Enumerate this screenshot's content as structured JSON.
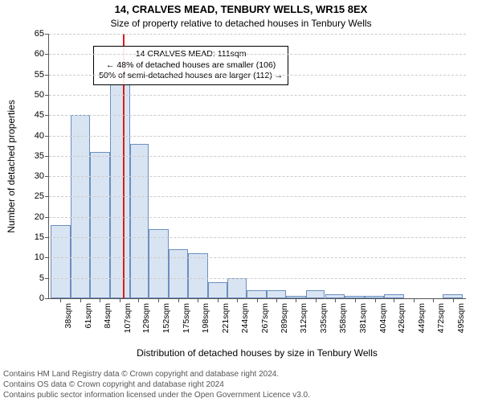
{
  "title_main": "14, CRALVES MEAD, TENBURY WELLS, WR15 8EX",
  "title_sub": "Size of property relative to detached houses in Tenbury Wells",
  "ylabel": "Number of detached properties",
  "xlabel": "Distribution of detached houses by size in Tenbury Wells",
  "footer_line1": "Contains HM Land Registry data © Crown copyright and database right 2024.",
  "footer_line2": "Contains OS data © Crown copyright and database right 2024",
  "footer_line3": "Contains public sector information licensed under the Open Government Licence v3.0.",
  "annotation": {
    "line1": "14 CRALVES MEAD: 111sqm",
    "line2": "← 48% of detached houses are smaller (106)",
    "line3": "50% of semi-detached houses are larger (112) →",
    "center_x_value": 190,
    "top_y_value": 62
  },
  "chart": {
    "type": "histogram",
    "bar_fill": "#d9e4f2",
    "bar_stroke": "#6a8fbf",
    "background_color": "#ffffff",
    "grid_color": "#cccccc",
    "axis_color": "#555555",
    "title_fontsize": 13,
    "subtitle_fontsize": 12,
    "label_fontsize": 12,
    "tick_fontsize": 11,
    "xmin": 25,
    "xmax": 510,
    "ymin": 0,
    "ymax": 65,
    "ytick_step": 5,
    "bin_width": 23,
    "ref_line": {
      "x": 111,
      "color": "#e11919",
      "width": 2
    },
    "xticks": [
      38,
      61,
      84,
      107,
      129,
      152,
      175,
      198,
      221,
      244,
      267,
      289,
      312,
      335,
      358,
      381,
      404,
      426,
      449,
      472,
      495
    ],
    "bars": [
      {
        "x0": 27,
        "x1": 50,
        "y": 18
      },
      {
        "x0": 50,
        "x1": 73,
        "y": 45
      },
      {
        "x0": 73,
        "x1": 96,
        "y": 36
      },
      {
        "x0": 96,
        "x1": 119,
        "y": 53
      },
      {
        "x0": 119,
        "x1": 141,
        "y": 38
      },
      {
        "x0": 141,
        "x1": 164,
        "y": 17
      },
      {
        "x0": 164,
        "x1": 187,
        "y": 12
      },
      {
        "x0": 187,
        "x1": 210,
        "y": 11
      },
      {
        "x0": 210,
        "x1": 232,
        "y": 4
      },
      {
        "x0": 232,
        "x1": 255,
        "y": 5
      },
      {
        "x0": 255,
        "x1": 278,
        "y": 2
      },
      {
        "x0": 278,
        "x1": 301,
        "y": 2
      },
      {
        "x0": 301,
        "x1": 324,
        "y": 0.5
      },
      {
        "x0": 324,
        "x1": 346,
        "y": 2
      },
      {
        "x0": 346,
        "x1": 369,
        "y": 1
      },
      {
        "x0": 369,
        "x1": 392,
        "y": 0.5
      },
      {
        "x0": 392,
        "x1": 415,
        "y": 0.5
      },
      {
        "x0": 415,
        "x1": 438,
        "y": 1
      },
      {
        "x0": 438,
        "x1": 461,
        "y": 0
      },
      {
        "x0": 461,
        "x1": 483,
        "y": 0
      },
      {
        "x0": 483,
        "x1": 506,
        "y": 1
      }
    ]
  }
}
